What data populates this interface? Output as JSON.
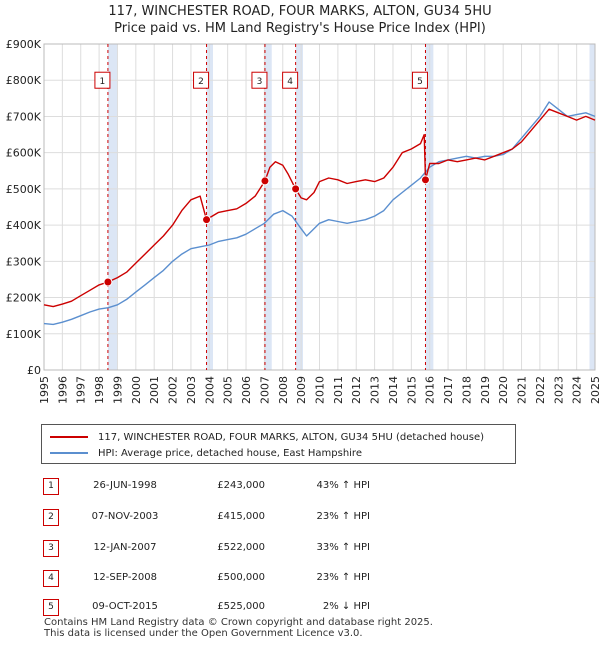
{
  "header": {
    "title_line1": "117, WINCHESTER ROAD, FOUR MARKS, ALTON, GU34 5HU",
    "title_line2": "Price paid vs. HM Land Registry's House Price Index (HPI)"
  },
  "legend": {
    "property_label": "117, WINCHESTER ROAD, FOUR MARKS, ALTON, GU34 5HU (detached house)",
    "hpi_label": "HPI: Average price, detached house, East Hampshire"
  },
  "sales": [
    {
      "num": "1",
      "date": "26-JUN-1998",
      "price": "£243,000",
      "hpi": "43% ↑ HPI"
    },
    {
      "num": "2",
      "date": "07-NOV-2003",
      "price": "£415,000",
      "hpi": "23% ↑ HPI"
    },
    {
      "num": "3",
      "date": "12-JAN-2007",
      "price": "£522,000",
      "hpi": "33% ↑ HPI"
    },
    {
      "num": "4",
      "date": "12-SEP-2008",
      "price": "£500,000",
      "hpi": "23% ↑ HPI"
    },
    {
      "num": "5",
      "date": "09-OCT-2015",
      "price": "£525,000",
      "hpi": "2% ↓ HPI"
    }
  ],
  "footer": {
    "line1": "Contains HM Land Registry data © Crown copyright and database right 2025.",
    "line2": "This data is licensed under the Open Government Licence v3.0."
  },
  "colors": {
    "property_line": "#cc0000",
    "hpi_line": "#5b8fcf",
    "shade": "#dce6f5",
    "grid": "#dddddd",
    "plot_bg": "#ffffff"
  },
  "chart_data": {
    "type": "line",
    "xlim": [
      1995,
      2025
    ],
    "ylim": [
      0,
      900000
    ],
    "x_ticks": [
      "1995",
      "1996",
      "1997",
      "1998",
      "1999",
      "2000",
      "2001",
      "2002",
      "2003",
      "2004",
      "2005",
      "2006",
      "2007",
      "2008",
      "2009",
      "2010",
      "2011",
      "2012",
      "2013",
      "2014",
      "2015",
      "2016",
      "2017",
      "2018",
      "2019",
      "2020",
      "2021",
      "2022",
      "2023",
      "2024",
      "2025"
    ],
    "y_ticks": [
      {
        "v": 0,
        "label": "£0"
      },
      {
        "v": 100000,
        "label": "£100K"
      },
      {
        "v": 200000,
        "label": "£200K"
      },
      {
        "v": 300000,
        "label": "£300K"
      },
      {
        "v": 400000,
        "label": "£400K"
      },
      {
        "v": 500000,
        "label": "£500K"
      },
      {
        "v": 600000,
        "label": "£600K"
      },
      {
        "v": 700000,
        "label": "£700K"
      },
      {
        "v": 800000,
        "label": "£800K"
      },
      {
        "v": 900000,
        "label": "£900K"
      }
    ],
    "grid": true,
    "sale_markers": [
      {
        "label": "1",
        "x": 1998.48,
        "y": 243000
      },
      {
        "label": "2",
        "x": 2003.85,
        "y": 415000
      },
      {
        "label": "3",
        "x": 2007.03,
        "y": 522000
      },
      {
        "label": "4",
        "x": 2008.7,
        "y": 500000
      },
      {
        "label": "5",
        "x": 2015.77,
        "y": 525000
      }
    ],
    "shaded_spans": [
      [
        1998.48,
        1999.0
      ],
      [
        2003.85,
        2004.2
      ],
      [
        2007.03,
        2007.4
      ],
      [
        2008.7,
        2009.1
      ],
      [
        2015.77,
        2016.2
      ],
      [
        2024.7,
        2025.0
      ]
    ],
    "series": [
      {
        "name": "117, WINCHESTER ROAD, FOUR MARKS, ALTON, GU34 5HU (detached house)",
        "x": [
          1995,
          1995.5,
          1996,
          1996.5,
          1997,
          1997.5,
          1998,
          1998.48,
          1999,
          1999.5,
          2000,
          2000.5,
          2001,
          2001.5,
          2002,
          2002.5,
          2003,
          2003.5,
          2003.85,
          2004,
          2004.5,
          2005,
          2005.5,
          2006,
          2006.5,
          2007.03,
          2007.3,
          2007.6,
          2008,
          2008.3,
          2008.7,
          2009,
          2009.3,
          2009.7,
          2010,
          2010.5,
          2011,
          2011.5,
          2012,
          2012.5,
          2013,
          2013.5,
          2014,
          2014.5,
          2015,
          2015.5,
          2015.7,
          2015.77,
          2016,
          2016.5,
          2017,
          2017.5,
          2018,
          2018.5,
          2019,
          2019.5,
          2020,
          2020.5,
          2021,
          2021.5,
          2022,
          2022.5,
          2023,
          2023.5,
          2024,
          2024.5,
          2025
        ],
        "y": [
          180000,
          175000,
          182000,
          190000,
          205000,
          220000,
          235000,
          243000,
          255000,
          270000,
          295000,
          320000,
          345000,
          370000,
          400000,
          440000,
          470000,
          480000,
          415000,
          420000,
          435000,
          440000,
          445000,
          460000,
          480000,
          522000,
          560000,
          575000,
          565000,
          540000,
          500000,
          475000,
          470000,
          490000,
          520000,
          530000,
          525000,
          515000,
          520000,
          525000,
          520000,
          530000,
          560000,
          600000,
          610000,
          625000,
          650000,
          525000,
          570000,
          570000,
          580000,
          575000,
          580000,
          585000,
          580000,
          590000,
          600000,
          610000,
          630000,
          660000,
          690000,
          720000,
          710000,
          700000,
          690000,
          700000,
          690000
        ]
      },
      {
        "name": "HPI: Average price, detached house, East Hampshire",
        "x": [
          1995,
          1995.5,
          1996,
          1996.5,
          1997,
          1997.5,
          1998,
          1998.5,
          1999,
          1999.5,
          2000,
          2000.5,
          2001,
          2001.5,
          2002,
          2002.5,
          2003,
          2003.5,
          2004,
          2004.5,
          2005,
          2005.5,
          2006,
          2006.5,
          2007,
          2007.5,
          2008,
          2008.5,
          2009,
          2009.3,
          2009.6,
          2010,
          2010.5,
          2011,
          2011.5,
          2012,
          2012.5,
          2013,
          2013.5,
          2014,
          2014.5,
          2015,
          2015.5,
          2016,
          2016.5,
          2017,
          2017.5,
          2018,
          2018.5,
          2019,
          2019.5,
          2020,
          2020.5,
          2021,
          2021.5,
          2022,
          2022.5,
          2023,
          2023.5,
          2024,
          2024.5,
          2025
        ],
        "y": [
          128000,
          126000,
          132000,
          140000,
          150000,
          160000,
          168000,
          172000,
          180000,
          195000,
          215000,
          235000,
          255000,
          275000,
          300000,
          320000,
          335000,
          340000,
          345000,
          355000,
          360000,
          365000,
          375000,
          390000,
          405000,
          430000,
          440000,
          425000,
          390000,
          370000,
          385000,
          405000,
          415000,
          410000,
          405000,
          410000,
          415000,
          425000,
          440000,
          470000,
          490000,
          510000,
          530000,
          560000,
          575000,
          580000,
          585000,
          590000,
          585000,
          590000,
          590000,
          595000,
          610000,
          640000,
          670000,
          700000,
          740000,
          720000,
          700000,
          705000,
          710000,
          700000
        ]
      }
    ]
  }
}
